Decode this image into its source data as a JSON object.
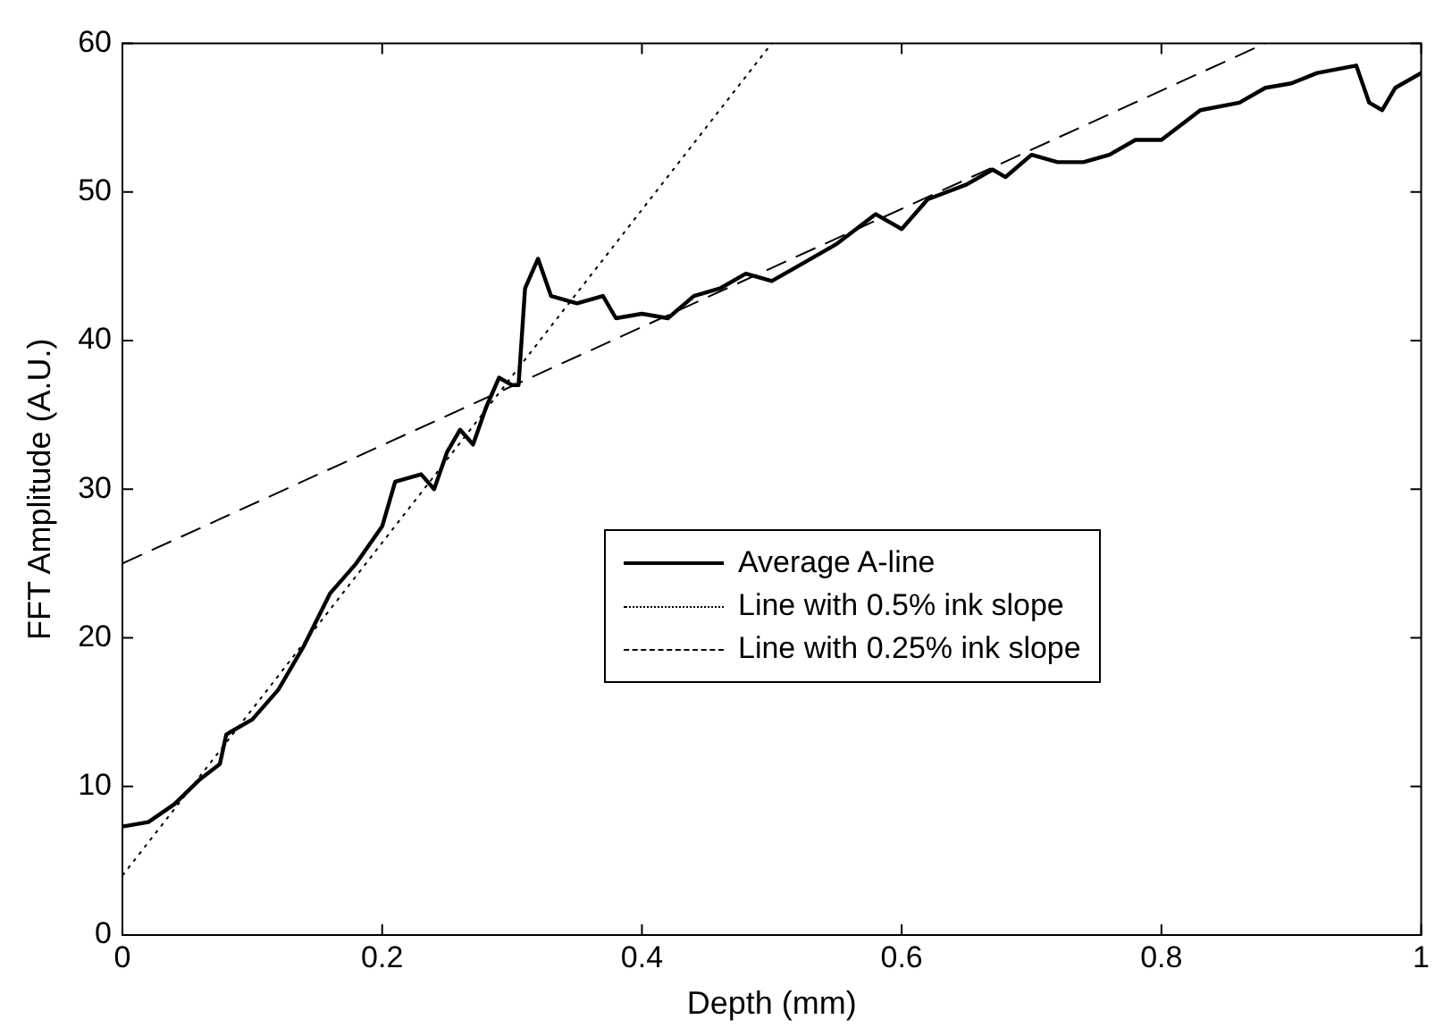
{
  "chart_data": {
    "type": "line",
    "xlabel": "Depth (mm)",
    "ylabel": "FFT Amplitude (A.U.)",
    "xlim": [
      0,
      1
    ],
    "ylim": [
      0,
      60
    ],
    "xticks": [
      0,
      0.2,
      0.4,
      0.6,
      0.8,
      1
    ],
    "yticks": [
      0,
      10,
      20,
      30,
      40,
      50,
      60
    ],
    "grid": false,
    "legend": "right",
    "marker": "none",
    "series": [
      {
        "name": "Average A-line",
        "color": "#000000",
        "line_style": "solid",
        "x": [
          0,
          0.02,
          0.04,
          0.06,
          0.075,
          0.08,
          0.1,
          0.12,
          0.14,
          0.16,
          0.18,
          0.2,
          0.21,
          0.23,
          0.24,
          0.25,
          0.26,
          0.27,
          0.28,
          0.29,
          0.3,
          0.305,
          0.31,
          0.32,
          0.33,
          0.35,
          0.37,
          0.38,
          0.4,
          0.42,
          0.44,
          0.46,
          0.48,
          0.5,
          0.52,
          0.55,
          0.58,
          0.6,
          0.62,
          0.65,
          0.67,
          0.68,
          0.7,
          0.72,
          0.74,
          0.76,
          0.78,
          0.8,
          0.83,
          0.86,
          0.88,
          0.9,
          0.92,
          0.95,
          0.96,
          0.97,
          0.98,
          1
        ],
        "values": [
          7.3,
          7.6,
          8.8,
          10.5,
          11.5,
          13.5,
          14.5,
          16.5,
          19.5,
          23,
          25,
          27.5,
          30.5,
          31,
          30,
          32.5,
          34,
          33,
          35.5,
          37.5,
          37,
          37,
          43.5,
          45.5,
          43,
          42.5,
          43,
          41.5,
          41.8,
          41.5,
          43,
          43.5,
          44.5,
          44,
          45,
          46.5,
          48.5,
          47.5,
          49.5,
          50.5,
          51.5,
          51,
          52.5,
          52,
          52,
          52.5,
          53.5,
          53.5,
          55.5,
          56,
          57,
          57.3,
          58,
          58.5,
          56,
          55.5,
          57,
          58
        ]
      },
      {
        "name": "Line with 0.5% ink slope",
        "color": "#000000",
        "line_style": "dotted",
        "x": [
          0,
          0.5
        ],
        "values": [
          4,
          60
        ]
      },
      {
        "name": "Line with 0.25% ink slope",
        "color": "#000000",
        "line_style": "dashed",
        "x": [
          0,
          0.88
        ],
        "values": [
          25,
          60
        ]
      }
    ]
  }
}
